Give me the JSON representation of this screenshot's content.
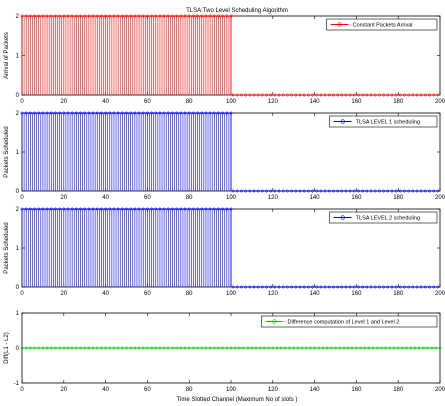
{
  "figure_title": "TLSA:Two Level Scheduling Algorithm",
  "xlabel": "Time Slotted Channel (Maximum No of slots )",
  "chart_data": [
    {
      "type": "line",
      "title": "TLSA:Two Level Scheduling Algorithm",
      "ylabel": "Arrival of Packets",
      "xlim": [
        0,
        200
      ],
      "ylim": [
        0,
        2
      ],
      "xticks": [
        0,
        20,
        40,
        60,
        80,
        100,
        120,
        140,
        160,
        180,
        200
      ],
      "yticks": [
        0,
        1,
        2
      ],
      "grid": false,
      "legend_position": "top-right",
      "series": [
        {
          "name": "Constant Packets Arrival",
          "color": "#ff0000",
          "marker": "circle",
          "x_start": 0,
          "x_end": 100,
          "x_step": 1,
          "y_value": 2,
          "drop_to": 0,
          "tail": {
            "x_start": 101,
            "x_end": 200,
            "y_value": 0
          }
        }
      ]
    },
    {
      "type": "line",
      "title": "",
      "ylabel": "Packets Scheduled",
      "xlim": [
        0,
        200
      ],
      "ylim": [
        0,
        2
      ],
      "xticks": [
        0,
        20,
        40,
        60,
        80,
        100,
        120,
        140,
        160,
        180,
        200
      ],
      "yticks": [
        0,
        1,
        2
      ],
      "grid": false,
      "legend_position": "top-right",
      "series": [
        {
          "name": "TLSA LEVEL 1 scheduling",
          "color": "#0000ff",
          "marker": "circle",
          "x_start": 0,
          "x_end": 100,
          "x_step": 1,
          "y_value": 2,
          "drop_to": 0,
          "tail": {
            "x_start": 101,
            "x_end": 200,
            "y_value": 0
          }
        }
      ]
    },
    {
      "type": "line",
      "title": "",
      "ylabel": "Packets Scheduled",
      "xlim": [
        0,
        200
      ],
      "ylim": [
        0,
        2
      ],
      "xticks": [
        0,
        20,
        40,
        60,
        80,
        100,
        120,
        140,
        160,
        180,
        200
      ],
      "yticks": [
        0,
        1,
        2
      ],
      "grid": false,
      "legend_position": "top-right",
      "series": [
        {
          "name": "TLSA LEVEL 2 scheduling",
          "color": "#0000ff",
          "marker": "circle",
          "x_start": 0,
          "x_end": 100,
          "x_step": 1,
          "y_value": 2,
          "drop_to": 0,
          "tail": {
            "x_start": 101,
            "x_end": 200,
            "y_value": 0
          }
        }
      ]
    },
    {
      "type": "line",
      "title": "",
      "ylabel": "Diff(L1 - L2)",
      "xlabel": "Time Slotted Channel (Maximum No of slots )",
      "xlim": [
        0,
        200
      ],
      "ylim": [
        -1,
        1
      ],
      "xticks": [
        0,
        20,
        40,
        60,
        80,
        100,
        120,
        140,
        160,
        180,
        200
      ],
      "yticks": [
        -1,
        0,
        1
      ],
      "grid": false,
      "legend_position": "top-right",
      "series": [
        {
          "name": "Difference computation of Level 1 and Level 2",
          "color": "#00c800",
          "marker": "circle",
          "x_start": 0,
          "x_end": 200,
          "x_step": 1,
          "y_value": 0
        }
      ]
    }
  ]
}
